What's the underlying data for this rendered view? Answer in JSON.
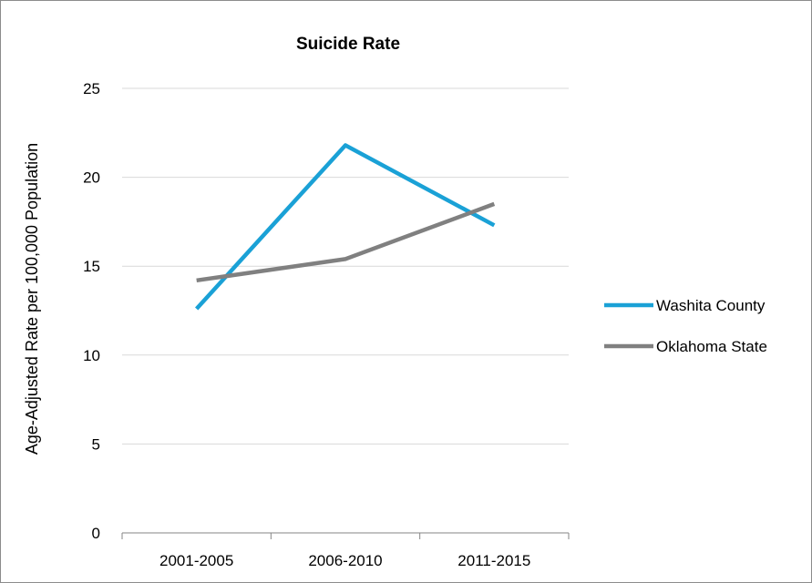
{
  "chart_data": {
    "type": "line",
    "title": "Suicide Rate",
    "xlabel": "",
    "ylabel": "Age-Adjusted Rate per 100,000 Population",
    "categories": [
      "2001-2005",
      "2006-2010",
      "2011-2015"
    ],
    "ylim": [
      0,
      25
    ],
    "yticks": [
      0,
      5,
      10,
      15,
      20,
      25
    ],
    "grid": true,
    "legend_position": "right",
    "series": [
      {
        "name": "Washita County",
        "values": [
          12.6,
          21.8,
          17.3
        ],
        "color": "#1aa1d6"
      },
      {
        "name": "Oklahoma State",
        "values": [
          14.2,
          15.4,
          18.5
        ],
        "color": "#808080"
      }
    ]
  }
}
